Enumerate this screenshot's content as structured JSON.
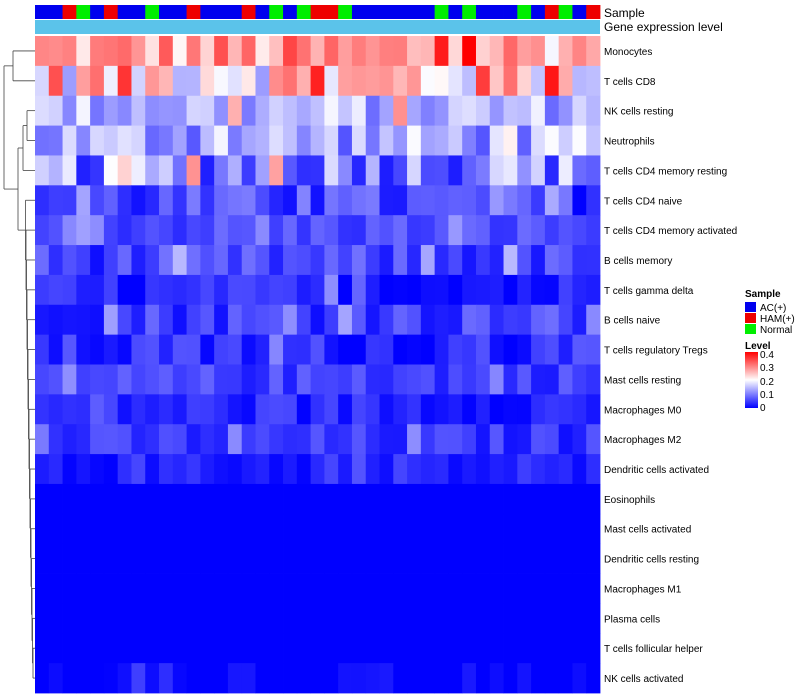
{
  "chart_data": {
    "type": "heatmap",
    "title": "",
    "annotation_labels": [
      "Sample",
      "Gene expression level"
    ],
    "sample_legend": {
      "title": "Sample",
      "entries": [
        {
          "name": "AC(+)",
          "color": "#0000ee"
        },
        {
          "name": "HAM(+)",
          "color": "#ee0000"
        },
        {
          "name": "Normal",
          "color": "#00ee00"
        }
      ]
    },
    "level_legend": {
      "title": "Level",
      "ticks": [
        "0.4",
        "0.3",
        "0.2",
        "0.1",
        "0"
      ],
      "range": [
        0,
        0.4
      ],
      "colors": {
        "low": "#0000ff",
        "mid": "#ffffff",
        "high": "#ff0000"
      }
    },
    "expression_bar_color": "#5bc3ea",
    "samples": [
      "AC(+)",
      "AC(+)",
      "HAM(+)",
      "Normal",
      "AC(+)",
      "HAM(+)",
      "AC(+)",
      "AC(+)",
      "Normal",
      "AC(+)",
      "AC(+)",
      "HAM(+)",
      "AC(+)",
      "AC(+)",
      "AC(+)",
      "HAM(+)",
      "AC(+)",
      "Normal",
      "AC(+)",
      "Normal",
      "HAM(+)",
      "HAM(+)",
      "Normal",
      "AC(+)",
      "AC(+)",
      "AC(+)",
      "AC(+)",
      "AC(+)",
      "AC(+)",
      "Normal",
      "AC(+)",
      "Normal",
      "AC(+)",
      "AC(+)",
      "AC(+)",
      "Normal",
      "AC(+)",
      "HAM(+)",
      "Normal",
      "AC(+)",
      "HAM(+)"
    ],
    "rows": [
      {
        "label": "Monocytes",
        "base": 0.27,
        "spread": 0.08
      },
      {
        "label": "T cells CD8",
        "base": 0.24,
        "spread": 0.12
      },
      {
        "label": "NK cells resting",
        "base": 0.14,
        "spread": 0.06
      },
      {
        "label": "Neutrophils",
        "base": 0.13,
        "spread": 0.07
      },
      {
        "label": "T cells CD4 memory resting",
        "base": 0.11,
        "spread": 0.09
      },
      {
        "label": "T cells CD4 naive",
        "base": 0.05,
        "spread": 0.05
      },
      {
        "label": "T cells CD4 memory activated",
        "base": 0.06,
        "spread": 0.03
      },
      {
        "label": "B cells memory",
        "base": 0.05,
        "spread": 0.04
      },
      {
        "label": "T cells gamma delta",
        "base": 0.02,
        "spread": 0.04
      },
      {
        "label": "B cells naive",
        "base": 0.05,
        "spread": 0.04
      },
      {
        "label": "T cells regulatory  Tregs",
        "base": 0.03,
        "spread": 0.04
      },
      {
        "label": "Mast cells resting",
        "base": 0.05,
        "spread": 0.03
      },
      {
        "label": "Macrophages M0",
        "base": 0.03,
        "spread": 0.03
      },
      {
        "label": "Macrophages M2",
        "base": 0.04,
        "spread": 0.03
      },
      {
        "label": "Dendritic cells activated",
        "base": 0.02,
        "spread": 0.02
      },
      {
        "label": "Eosinophils",
        "base": 0.0,
        "spread": 0.0
      },
      {
        "label": "Mast cells activated",
        "base": 0.0,
        "spread": 0.0
      },
      {
        "label": "Dendritic cells resting",
        "base": 0.0,
        "spread": 0.0
      },
      {
        "label": "Macrophages M1",
        "base": 0.0,
        "spread": 0.0
      },
      {
        "label": "Plasma cells",
        "base": 0.0,
        "spread": 0.0
      },
      {
        "label": "T cells follicular helper",
        "base": 0.0,
        "spread": 0.0
      },
      {
        "label": "NK cells activated",
        "base": 0.0,
        "spread": 0.02
      }
    ]
  }
}
